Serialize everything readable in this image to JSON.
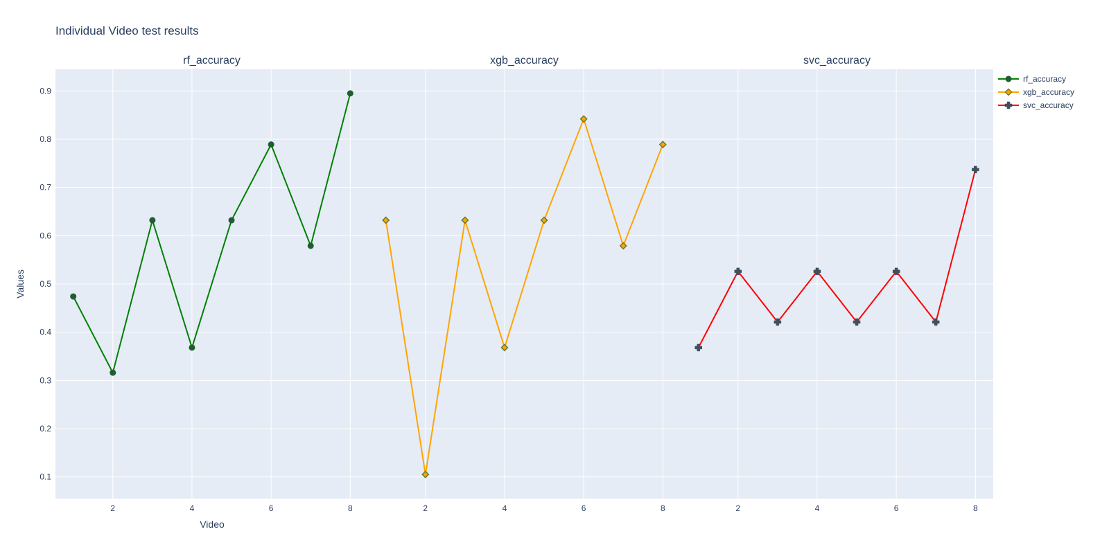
{
  "chart_data": {
    "type": "line",
    "title": "Individual Video test results",
    "ylabel": "Values",
    "xlabel": "Video",
    "ylim": [
      0.055,
      0.945
    ],
    "y_ticks": [
      0.1,
      0.2,
      0.3,
      0.4,
      0.5,
      0.6,
      0.7,
      0.8,
      0.9
    ],
    "x_ticks": [
      2,
      4,
      6,
      8
    ],
    "grid": true,
    "legend_position": "top-right",
    "subplots": [
      {
        "subtitle": "rf_accuracy",
        "xlim": [
          0.55,
          8.45
        ],
        "series": {
          "name": "rf_accuracy",
          "color": "#008000",
          "marker": "circle",
          "marker_color": "#1e5e32",
          "x": [
            1,
            2,
            3,
            4,
            5,
            6,
            7,
            8
          ],
          "y": [
            0.474,
            0.316,
            0.632,
            0.368,
            0.632,
            0.789,
            0.579,
            0.895
          ]
        }
      },
      {
        "subtitle": "xgb_accuracy",
        "xlim": [
          0.55,
          8.45
        ],
        "series": {
          "name": "xgb_accuracy",
          "color": "#ffa500",
          "marker": "diamond",
          "marker_color": "#6b7a2e",
          "x": [
            1,
            2,
            3,
            4,
            5,
            6,
            7,
            8
          ],
          "y": [
            0.632,
            0.105,
            0.632,
            0.368,
            0.632,
            0.842,
            0.579,
            0.789
          ]
        }
      },
      {
        "subtitle": "svc_accuracy",
        "xlim": [
          0.55,
          8.45
        ],
        "series": {
          "name": "svc_accuracy",
          "color": "#ff0000",
          "marker": "cross",
          "marker_color": "#3f4f5f",
          "x": [
            1,
            2,
            3,
            4,
            5,
            6,
            7,
            8
          ],
          "y": [
            0.368,
            0.526,
            0.421,
            0.526,
            0.421,
            0.526,
            0.421,
            0.737
          ]
        }
      }
    ],
    "legend": [
      "rf_accuracy",
      "xgb_accuracy",
      "svc_accuracy"
    ]
  }
}
